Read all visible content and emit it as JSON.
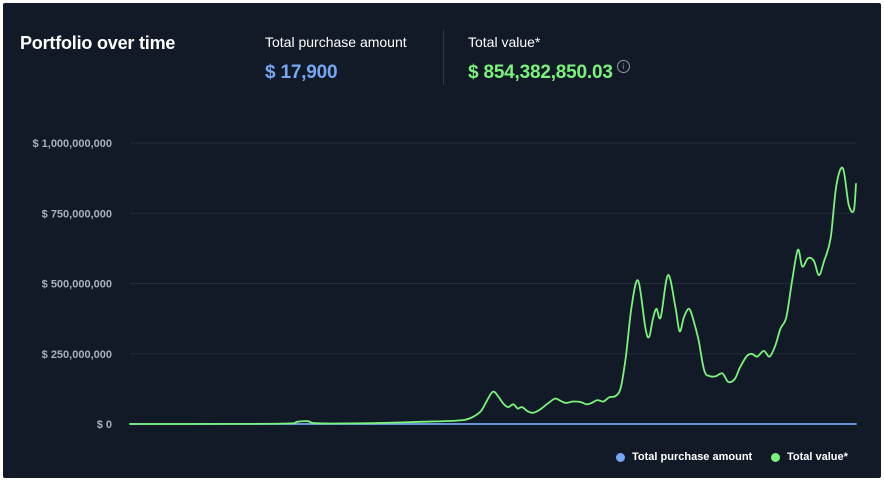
{
  "header": {
    "title": "Portfolio over time",
    "purchase_label": "Total purchase amount",
    "purchase_value": "$ 17,900",
    "total_label": "Total value*",
    "total_value": "$ 854,382,850.03",
    "info_icon": "info-icon"
  },
  "legend": {
    "purchase": "Total purchase amount",
    "total": "Total value*"
  },
  "colors": {
    "background": "#131a27",
    "purchase": "#74a7f3",
    "total": "#79f37c",
    "grid": "#232c3a",
    "tick_text": "#a7b0bf"
  },
  "chart_data": {
    "type": "line",
    "title": "Portfolio over time",
    "xlabel": "",
    "ylabel": "",
    "ylim": [
      0,
      1000000000
    ],
    "xlim": [
      0,
      100
    ],
    "x_axis_labels_shown": false,
    "y_ticks": [
      0,
      250000000,
      500000000,
      750000000,
      1000000000
    ],
    "y_tick_labels": [
      "$ 0",
      "$ 250,000,000",
      "$ 500,000,000",
      "$ 750,000,000",
      "$ 1,000,000,000"
    ],
    "grid": true,
    "legend_position": "bottom-right",
    "series": [
      {
        "name": "Total purchase amount",
        "color": "#74a7f3",
        "x": [
          0,
          100
        ],
        "y": [
          0,
          17900
        ]
      },
      {
        "name": "Total value*",
        "color": "#79f37c",
        "x": [
          0,
          15,
          22,
          23,
          24.5,
          25.5,
          30,
          35,
          40,
          45,
          46.8,
          48.3,
          49.1,
          50,
          50.8,
          51.5,
          52.1,
          52.8,
          53.4,
          54,
          54.8,
          55.5,
          56.4,
          57.4,
          58.5,
          59.1,
          60,
          61,
          62.1,
          62.9,
          63.6,
          64.4,
          65.2,
          66,
          66.9,
          67.6,
          68.3,
          69.1,
          70,
          71,
          71.5,
          72,
          72.5,
          73.1,
          74.1,
          75.1,
          75.7,
          76.3,
          77,
          77.6,
          78.3,
          79.1,
          79.9,
          80.7,
          81.6,
          82.4,
          83.3,
          84,
          84.9,
          85.6,
          86.4,
          87.3,
          88.1,
          88.9,
          89.6,
          90.4,
          91.2,
          92,
          92.6,
          93.4,
          94.2,
          94.9,
          95.6,
          96.5,
          97.3,
          98.2,
          99,
          99.7,
          100
        ],
        "y": [
          0,
          500000,
          2000000,
          8000000,
          10000000,
          3000000,
          2000000,
          4000000,
          8000000,
          12000000,
          20000000,
          45000000,
          80000000,
          115000000,
          95000000,
          70000000,
          60000000,
          70000000,
          55000000,
          60000000,
          45000000,
          40000000,
          50000000,
          70000000,
          90000000,
          85000000,
          75000000,
          80000000,
          78000000,
          70000000,
          75000000,
          85000000,
          80000000,
          95000000,
          100000000,
          130000000,
          240000000,
          420000000,
          510000000,
          340000000,
          310000000,
          370000000,
          410000000,
          380000000,
          530000000,
          420000000,
          330000000,
          380000000,
          410000000,
          370000000,
          300000000,
          190000000,
          170000000,
          170000000,
          180000000,
          150000000,
          160000000,
          200000000,
          240000000,
          250000000,
          240000000,
          260000000,
          240000000,
          280000000,
          340000000,
          380000000,
          510000000,
          620000000,
          560000000,
          590000000,
          580000000,
          530000000,
          580000000,
          660000000,
          850000000,
          910000000,
          780000000,
          760000000,
          854382850
        ]
      }
    ]
  }
}
